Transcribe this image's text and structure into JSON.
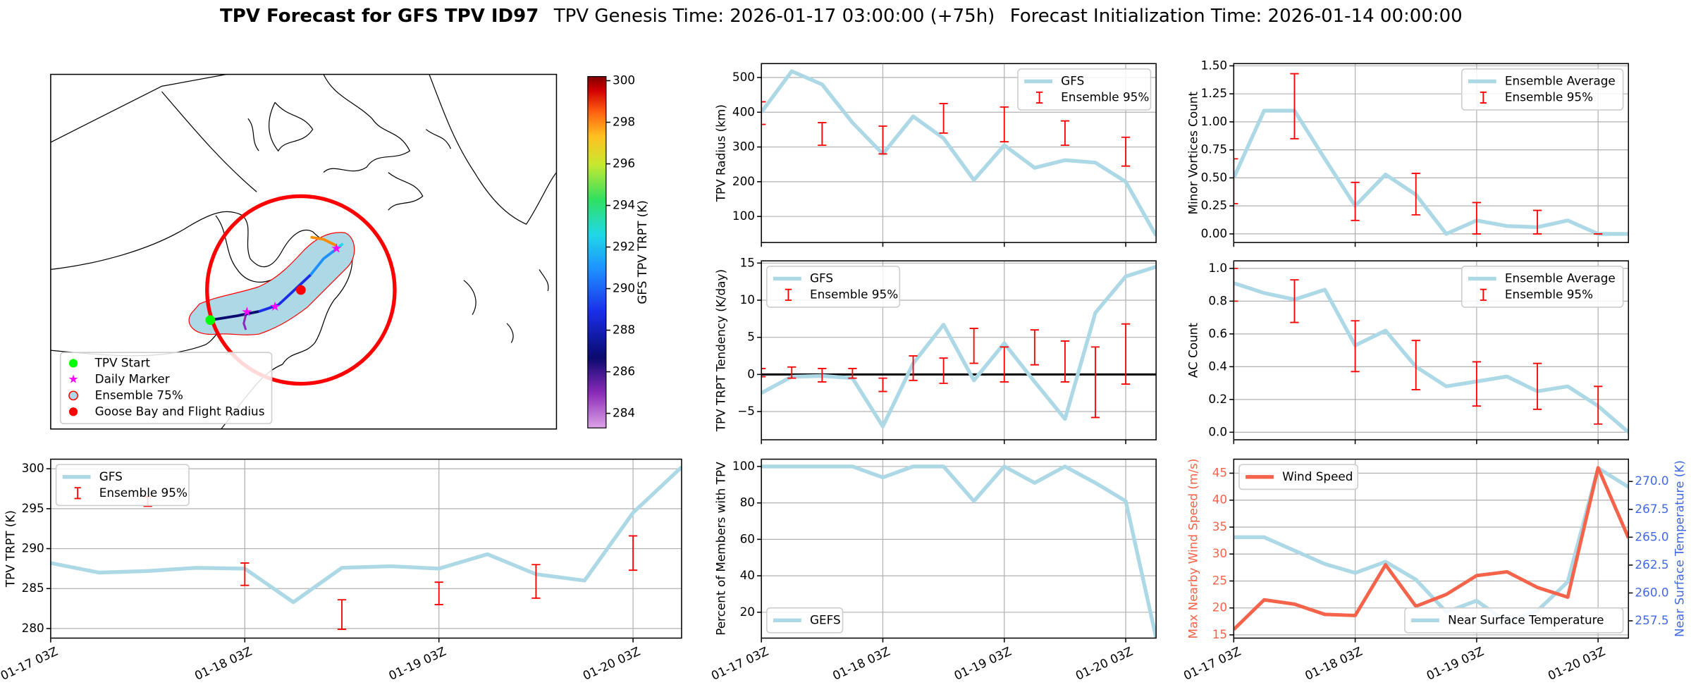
{
  "title": {
    "main": "TPV Forecast for GFS TPV ID97",
    "genesis": "TPV Genesis Time: 2026-01-17 03:00:00 (+75h)",
    "init": "Forecast Initialization Time: 2026-01-14 00:00:00"
  },
  "map": {
    "legend": [
      "TPV Start",
      "Daily Marker",
      "Ensemble 75%",
      "Goose Bay and Flight Radius"
    ],
    "colorbar": {
      "label": "GFS TPV TRPT (K)",
      "lim": [
        283.3,
        300.2
      ],
      "ticks": [
        284,
        286,
        288,
        290,
        292,
        294,
        296,
        298,
        300
      ]
    }
  },
  "chart_data": [
    {
      "type": "line",
      "ylabel": "TPV Radius (km)",
      "grid": true,
      "legend": "upper right",
      "show_xtick_labels": false,
      "x": [
        "01-17 03Z",
        "01-17 09Z",
        "01-17 15Z",
        "01-17 21Z",
        "01-18 03Z",
        "01-18 09Z",
        "01-18 15Z",
        "01-18 21Z",
        "01-19 03Z",
        "01-19 09Z",
        "01-19 15Z",
        "01-19 21Z",
        "01-20 03Z",
        "01-20 09Z"
      ],
      "xlim": [
        "01-17 03Z",
        "01-20 09Z"
      ],
      "xticks": [
        "01-17 03Z",
        "01-18 03Z",
        "01-19 03Z",
        "01-20 03Z"
      ],
      "ylim": [
        25,
        540
      ],
      "yticks": [
        100,
        200,
        300,
        400,
        500
      ],
      "series": [
        {
          "name": "GFS",
          "color": "#add8e6",
          "values": [
            400,
            518,
            480,
            370,
            280,
            388,
            325,
            205,
            305,
            240,
            262,
            255,
            200,
            45
          ]
        },
        {
          "name": "Ensemble 95%",
          "type": "errorbar",
          "color": "#ff0000",
          "low": [
            365,
            null,
            305,
            null,
            280,
            null,
            340,
            null,
            315,
            null,
            305,
            null,
            245,
            null
          ],
          "high": [
            430,
            null,
            370,
            null,
            360,
            null,
            425,
            null,
            415,
            null,
            375,
            null,
            328,
            null
          ]
        }
      ]
    },
    {
      "type": "line",
      "ylabel": "Minor Vortices Count",
      "grid": true,
      "legend": "upper right",
      "show_xtick_labels": false,
      "x": [
        "01-17 03Z",
        "01-17 09Z",
        "01-17 15Z",
        "01-17 21Z",
        "01-18 03Z",
        "01-18 09Z",
        "01-18 15Z",
        "01-18 21Z",
        "01-19 03Z",
        "01-19 09Z",
        "01-19 15Z",
        "01-19 21Z",
        "01-20 03Z",
        "01-20 09Z"
      ],
      "xlim": [
        "01-17 03Z",
        "01-20 09Z"
      ],
      "xticks": [
        "01-17 03Z",
        "01-18 03Z",
        "01-19 03Z",
        "01-20 03Z"
      ],
      "ylim": [
        -0.077,
        1.52
      ],
      "yticks": [
        {
          "value": 0,
          "label": "0.00"
        },
        {
          "value": 0.25,
          "label": "0.25"
        },
        {
          "value": 0.5,
          "label": "0.50"
        },
        {
          "value": 0.75,
          "label": "0.75"
        },
        {
          "value": 1,
          "label": "1.00"
        },
        {
          "value": 1.25,
          "label": "1.25"
        },
        {
          "value": 1.5,
          "label": "1.50"
        }
      ],
      "series": [
        {
          "name": "Ensemble Average",
          "color": "#add8e6",
          "values": [
            0.5,
            1.1,
            1.1,
            0.67,
            0.25,
            0.53,
            0.35,
            0,
            0.12,
            0.07,
            0.06,
            0.12,
            0,
            0
          ]
        },
        {
          "name": "Ensemble 95%",
          "type": "errorbar",
          "color": "#ff0000",
          "low": [
            0.27,
            null,
            0.85,
            null,
            0.12,
            null,
            0.17,
            null,
            0,
            null,
            0,
            null,
            0,
            null
          ],
          "high": [
            0.67,
            null,
            1.43,
            null,
            0.46,
            null,
            0.54,
            null,
            0.28,
            null,
            0.21,
            null,
            0,
            null
          ]
        }
      ]
    },
    {
      "type": "line",
      "ylabel": "TPV TRPT Tendency (K/day)",
      "grid": true,
      "legend": "upper left",
      "show_xtick_labels": false,
      "hline": 0,
      "x": [
        "01-17 03Z",
        "01-17 09Z",
        "01-17 15Z",
        "01-17 21Z",
        "01-18 03Z",
        "01-18 09Z",
        "01-18 15Z",
        "01-18 21Z",
        "01-19 03Z",
        "01-19 09Z",
        "01-19 15Z",
        "01-19 21Z",
        "01-20 03Z",
        "01-20 09Z"
      ],
      "xlim": [
        "01-17 03Z",
        "01-20 09Z"
      ],
      "xticks": [
        "01-17 03Z",
        "01-18 03Z",
        "01-19 03Z",
        "01-20 03Z"
      ],
      "ylim": [
        -8.8,
        15.3
      ],
      "yticks": [
        {
          "value": -5,
          "label": "−5"
        },
        0,
        5,
        10,
        15
      ],
      "series": [
        {
          "name": "GFS",
          "color": "#add8e6",
          "values": [
            -2.5,
            -0.3,
            -0.2,
            -0.5,
            -7,
            1.5,
            6.7,
            -0.8,
            4.2,
            -1,
            -6,
            8.3,
            13.2,
            14.5
          ]
        },
        {
          "name": "Ensemble 95%",
          "type": "errorbar",
          "color": "#ff0000",
          "low": [
            -0.3,
            -0.5,
            -1,
            -0.5,
            -2.3,
            -0.8,
            -1.2,
            1.5,
            -1,
            1.3,
            -1,
            -5.8,
            -1.3,
            null
          ],
          "high": [
            0.8,
            1,
            0.8,
            0.8,
            -0.5,
            2.5,
            2.2,
            6.2,
            3.7,
            6,
            4.5,
            3.7,
            6.8,
            null
          ]
        }
      ]
    },
    {
      "type": "line",
      "ylabel": "AC Count",
      "grid": true,
      "legend": "upper right",
      "show_xtick_labels": false,
      "x": [
        "01-17 03Z",
        "01-17 09Z",
        "01-17 15Z",
        "01-17 21Z",
        "01-18 03Z",
        "01-18 09Z",
        "01-18 15Z",
        "01-18 21Z",
        "01-19 03Z",
        "01-19 09Z",
        "01-19 15Z",
        "01-19 21Z",
        "01-20 03Z",
        "01-20 09Z"
      ],
      "xlim": [
        "01-17 03Z",
        "01-20 09Z"
      ],
      "xticks": [
        "01-17 03Z",
        "01-18 03Z",
        "01-19 03Z",
        "01-20 03Z"
      ],
      "ylim": [
        -0.046,
        1.046
      ],
      "yticks": [
        {
          "value": 0,
          "label": "0.0"
        },
        {
          "value": 0.2,
          "label": "0.2"
        },
        {
          "value": 0.4,
          "label": "0.4"
        },
        {
          "value": 0.6,
          "label": "0.6"
        },
        {
          "value": 0.8,
          "label": "0.8"
        },
        {
          "value": 1,
          "label": "1.0"
        }
      ],
      "series": [
        {
          "name": "Ensemble Average",
          "color": "#add8e6",
          "values": [
            0.91,
            0.85,
            0.81,
            0.87,
            0.53,
            0.62,
            0.4,
            0.28,
            0.31,
            0.34,
            0.25,
            0.28,
            0.16,
            0
          ]
        },
        {
          "name": "Ensemble 95%",
          "type": "errorbar",
          "color": "#ff0000",
          "low": [
            0.8,
            null,
            0.67,
            null,
            0.37,
            null,
            0.26,
            null,
            0.16,
            null,
            0.14,
            null,
            0.05,
            null
          ],
          "high": [
            1,
            null,
            0.93,
            null,
            0.68,
            null,
            0.56,
            null,
            0.43,
            null,
            0.42,
            null,
            0.28,
            null
          ]
        }
      ]
    },
    {
      "type": "line",
      "ylabel": "TPV TRPT (K)",
      "grid": true,
      "legend": "upper left",
      "show_xtick_labels": true,
      "x": [
        "01-17 03Z",
        "01-17 09Z",
        "01-17 15Z",
        "01-17 21Z",
        "01-18 03Z",
        "01-18 09Z",
        "01-18 15Z",
        "01-18 21Z",
        "01-19 03Z",
        "01-19 09Z",
        "01-19 15Z",
        "01-19 21Z",
        "01-20 03Z",
        "01-20 09Z"
      ],
      "xlim": [
        "01-17 03Z",
        "01-20 09Z"
      ],
      "xticks": [
        "01-17 03Z",
        "01-18 03Z",
        "01-19 03Z",
        "01-20 03Z"
      ],
      "ylim": [
        278.8,
        301.2
      ],
      "yticks": [
        280,
        285,
        290,
        295,
        300
      ],
      "series": [
        {
          "name": "GFS",
          "color": "#add8e6",
          "values": [
            288.2,
            287,
            287.2,
            287.6,
            287.5,
            283.3,
            287.6,
            287.8,
            287.5,
            289.3,
            286.8,
            286,
            294.5,
            300.2
          ]
        },
        {
          "name": "Ensemble 95%",
          "type": "errorbar",
          "color": "#ff0000",
          "low": [
            null,
            null,
            295.3,
            null,
            285.4,
            null,
            279.9,
            null,
            283,
            null,
            283.8,
            null,
            287.3,
            null
          ],
          "high": [
            null,
            null,
            296.5,
            null,
            288.2,
            null,
            283.6,
            null,
            285.8,
            null,
            288,
            null,
            291.6,
            null
          ]
        }
      ]
    },
    {
      "type": "line",
      "ylabel": "Percent of Members with TPV",
      "grid": true,
      "legend": "lower left",
      "show_xtick_labels": true,
      "x": [
        "01-17 03Z",
        "01-17 09Z",
        "01-17 15Z",
        "01-17 21Z",
        "01-18 03Z",
        "01-18 09Z",
        "01-18 15Z",
        "01-18 21Z",
        "01-19 03Z",
        "01-19 09Z",
        "01-19 15Z",
        "01-19 21Z",
        "01-20 03Z",
        "01-20 09Z"
      ],
      "xlim": [
        "01-17 03Z",
        "01-20 09Z"
      ],
      "xticks": [
        "01-17 03Z",
        "01-18 03Z",
        "01-19 03Z",
        "01-20 03Z"
      ],
      "ylim": [
        5.8,
        104
      ],
      "yticks": [
        20,
        40,
        60,
        80,
        100
      ],
      "series": [
        {
          "name": "GEFS",
          "color": "#add8e6",
          "values": [
            100,
            100,
            100,
            100,
            94,
            100,
            100,
            81,
            100,
            91,
            100,
            91,
            81,
            6
          ]
        }
      ]
    },
    {
      "type": "line",
      "ylabel": "Max Nearby Wind Speed (m/s)",
      "ylabel_color": "#f4634a",
      "y2label": "Near Surface Temperature (K)",
      "y2label_color": "#4169e1",
      "grid": true,
      "legend": "upper left",
      "show_xtick_labels": true,
      "x": [
        "01-17 03Z",
        "01-17 09Z",
        "01-17 15Z",
        "01-17 21Z",
        "01-18 03Z",
        "01-18 09Z",
        "01-18 15Z",
        "01-18 21Z",
        "01-19 03Z",
        "01-19 09Z",
        "01-19 15Z",
        "01-19 21Z",
        "01-20 03Z",
        "01-20 09Z"
      ],
      "xlim": [
        "01-17 03Z",
        "01-20 09Z"
      ],
      "xticks": [
        "01-17 03Z",
        "01-18 03Z",
        "01-19 03Z",
        "01-20 03Z"
      ],
      "ylim": [
        14.4,
        47.6
      ],
      "yticks": [
        15,
        20,
        25,
        30,
        35,
        40,
        45
      ],
      "y2lim": [
        255.95,
        272.0
      ],
      "y2ticks": [
        {
          "value": 257.5,
          "label": "257.5"
        },
        {
          "value": 260,
          "label": "260.0"
        },
        {
          "value": 262.5,
          "label": "262.5"
        },
        {
          "value": 265,
          "label": "265.0"
        },
        {
          "value": 267.5,
          "label": "267.5"
        },
        {
          "value": 270,
          "label": "270.0"
        }
      ],
      "series": [
        {
          "name": "Near Surface Temperature",
          "color": "#add8e6",
          "axis": "y2",
          "legend": "lower right",
          "values": [
            265,
            265,
            263.8,
            262.6,
            261.8,
            262.8,
            261.2,
            258.3,
            259.3,
            257.4,
            258.4,
            261,
            271.2,
            269.5
          ]
        },
        {
          "name": "Wind Speed",
          "color": "#f4634a",
          "values": [
            16,
            21.5,
            20.7,
            18.8,
            18.6,
            28,
            20.3,
            22.5,
            26,
            26.7,
            23.8,
            22,
            46,
            33
          ]
        }
      ]
    }
  ]
}
